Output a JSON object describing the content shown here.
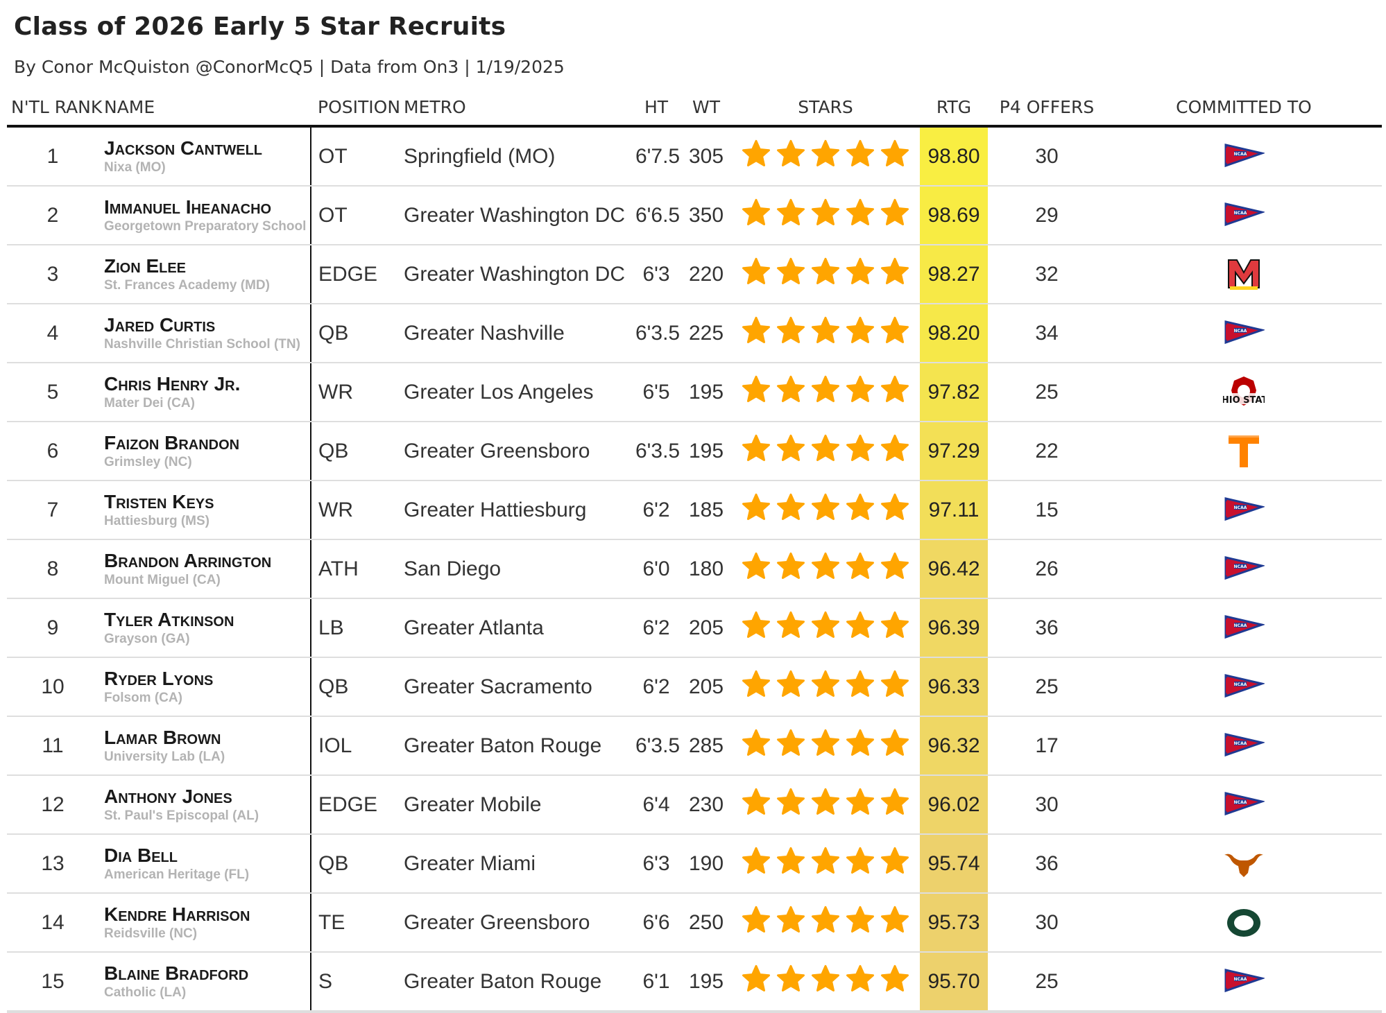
{
  "header": {
    "title": "Class of 2026 Early 5 Star Recruits",
    "subtitle": "By Conor McQuiston @ConorMcQ5 | Data from On3 | 1/19/2025"
  },
  "columns": [
    "N'TL RANK",
    "NAME",
    "POSITION",
    "METRO",
    "HT",
    "WT",
    "STARS",
    "RTG",
    "P4 OFFERS",
    "COMMITTED TO"
  ],
  "rows": [
    {
      "rank": "1",
      "name": "Jackson Cantwell",
      "school": "Nixa (MO)",
      "position": "OT",
      "metro": "Springfield (MO)",
      "ht": "6'7.5",
      "wt": "305",
      "stars": 5,
      "rating": "98.80",
      "offers": "30",
      "committed": "ncaa-icon",
      "rtg_color": "#f9ee42"
    },
    {
      "rank": "2",
      "name": "Immanuel Iheanacho",
      "school": "Georgetown Preparatory School (MD)",
      "position": "OT",
      "metro": "Greater Washington DC",
      "ht": "6'6.5",
      "wt": "350",
      "stars": 5,
      "rating": "98.69",
      "offers": "29",
      "committed": "ncaa-icon",
      "rtg_color": "#f8ec43"
    },
    {
      "rank": "3",
      "name": "Zion Elee",
      "school": "St. Frances Academy (MD)",
      "position": "EDGE",
      "metro": "Greater Washington DC",
      "ht": "6'3",
      "wt": "220",
      "stars": 5,
      "rating": "98.27",
      "offers": "32",
      "committed": "maryland-icon",
      "rtg_color": "#f7e947"
    },
    {
      "rank": "4",
      "name": "Jared Curtis",
      "school": "Nashville Christian School (TN)",
      "position": "QB",
      "metro": "Greater Nashville",
      "ht": "6'3.5",
      "wt": "225",
      "stars": 5,
      "rating": "98.20",
      "offers": "34",
      "committed": "ncaa-icon",
      "rtg_color": "#f6e849"
    },
    {
      "rank": "5",
      "name": "Chris Henry Jr.",
      "school": "Mater Dei (CA)",
      "position": "WR",
      "metro": "Greater Los Angeles",
      "ht": "6'5",
      "wt": "195",
      "stars": 5,
      "rating": "97.82",
      "offers": "25",
      "committed": "ohio-state-icon",
      "rtg_color": "#f4e44f"
    },
    {
      "rank": "6",
      "name": "Faizon Brandon",
      "school": "Grimsley (NC)",
      "position": "QB",
      "metro": "Greater Greensboro",
      "ht": "6'3.5",
      "wt": "195",
      "stars": 5,
      "rating": "97.29",
      "offers": "22",
      "committed": "tennessee-icon",
      "rtg_color": "#f3e055"
    },
    {
      "rank": "7",
      "name": "Tristen Keys",
      "school": "Hattiesburg (MS)",
      "position": "WR",
      "metro": "Greater Hattiesburg",
      "ht": "6'2",
      "wt": "185",
      "stars": 5,
      "rating": "97.11",
      "offers": "15",
      "committed": "ncaa-icon",
      "rtg_color": "#f2de59"
    },
    {
      "rank": "8",
      "name": "Brandon Arrington",
      "school": "Mount Miguel (CA)",
      "position": "ATH",
      "metro": "San Diego",
      "ht": "6'0",
      "wt": "180",
      "stars": 5,
      "rating": "96.42",
      "offers": "26",
      "committed": "ncaa-icon",
      "rtg_color": "#f0d862"
    },
    {
      "rank": "9",
      "name": "Tyler Atkinson",
      "school": "Grayson (GA)",
      "position": "LB",
      "metro": "Greater Atlanta",
      "ht": "6'2",
      "wt": "205",
      "stars": 5,
      "rating": "96.39",
      "offers": "36",
      "committed": "ncaa-icon",
      "rtg_color": "#f0d863"
    },
    {
      "rank": "10",
      "name": "Ryder Lyons",
      "school": "Folsom (CA)",
      "position": "QB",
      "metro": "Greater Sacramento",
      "ht": "6'2",
      "wt": "205",
      "stars": 5,
      "rating": "96.33",
      "offers": "25",
      "committed": "ncaa-icon",
      "rtg_color": "#efd764"
    },
    {
      "rank": "11",
      "name": "Lamar Brown",
      "school": "University Lab (LA)",
      "position": "IOL",
      "metro": "Greater Baton Rouge",
      "ht": "6'3.5",
      "wt": "285",
      "stars": 5,
      "rating": "96.32",
      "offers": "17",
      "committed": "ncaa-icon",
      "rtg_color": "#efd764"
    },
    {
      "rank": "12",
      "name": "Anthony Jones",
      "school": "St. Paul's Episcopal (AL)",
      "position": "EDGE",
      "metro": "Greater Mobile",
      "ht": "6'4",
      "wt": "230",
      "stars": 5,
      "rating": "96.02",
      "offers": "30",
      "committed": "ncaa-icon",
      "rtg_color": "#eed468"
    },
    {
      "rank": "13",
      "name": "Dia Bell",
      "school": "American Heritage (FL)",
      "position": "QB",
      "metro": "Greater Miami",
      "ht": "6'3",
      "wt": "190",
      "stars": 5,
      "rating": "95.74",
      "offers": "36",
      "committed": "texas-icon",
      "rtg_color": "#edd16c"
    },
    {
      "rank": "14",
      "name": "Kendre Harrison",
      "school": "Reidsville (NC)",
      "position": "TE",
      "metro": "Greater Greensboro",
      "ht": "6'6",
      "wt": "250",
      "stars": 5,
      "rating": "95.73",
      "offers": "30",
      "committed": "oregon-icon",
      "rtg_color": "#edd16c"
    },
    {
      "rank": "15",
      "name": "Blaine Bradford",
      "school": "Catholic (LA)",
      "position": "S",
      "metro": "Greater Baton Rouge",
      "ht": "6'1",
      "wt": "195",
      "stars": 5,
      "rating": "95.70",
      "offers": "25",
      "committed": "ncaa-icon",
      "rtg_color": "#edd16c"
    }
  ],
  "colors": {
    "star": "#ffa500",
    "header_rule": "#111111",
    "row_rule": "#dedede",
    "school_text": "#b3b3b3"
  }
}
